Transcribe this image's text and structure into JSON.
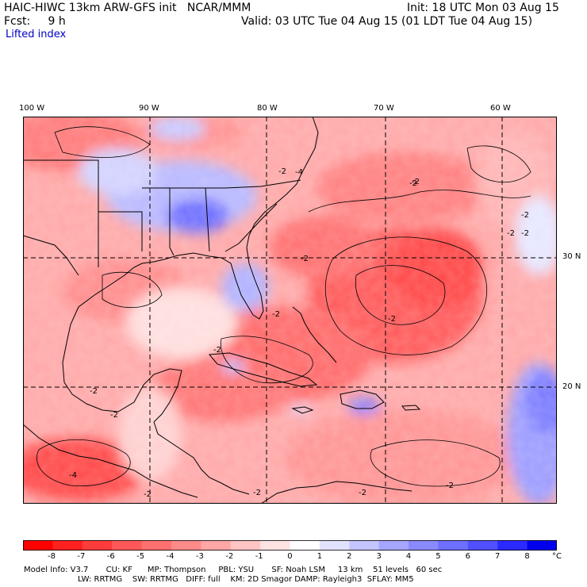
{
  "header": {
    "line1_left": "HAIC-HIWC 13km ARW-GFS init   NCAR/MMM",
    "line1_right": "Init: 18 UTC Mon 03 Aug 15",
    "line2_left": "Fcst:     9 h",
    "line2_right": "Valid: 03 UTC Tue 04 Aug 15 (01 LDT Tue 04 Aug 15)",
    "field_name": "Lifted index"
  },
  "map": {
    "lon_labels": [
      "100 W",
      "90 W",
      "80 W",
      "70 W",
      "60 W"
    ],
    "lat_labels": [
      "30 N",
      "20 N"
    ],
    "contour_labels": [
      "-2",
      "-4",
      "-2",
      "-2",
      "-2",
      "-2",
      "-2",
      "-2",
      "-2",
      "-2",
      "-2",
      "-4",
      "-2",
      "-2",
      "-2",
      "-2",
      "-2",
      "-2"
    ]
  },
  "colorbar": {
    "ticks": [
      "-8",
      "-7",
      "-6",
      "-5",
      "-4",
      "-3",
      "-2",
      "-1",
      "0",
      "1",
      "2",
      "3",
      "4",
      "5",
      "6",
      "7",
      "8"
    ],
    "unit": "°C",
    "colors": [
      "#ff0000",
      "#ff2020",
      "#ff3c3c",
      "#ff5858",
      "#ff7070",
      "#ff8a8a",
      "#ffa6a6",
      "#ffc4c4",
      "#ffe2e2",
      "#ffffff",
      "#e2e2ff",
      "#c4c4ff",
      "#a6a6ff",
      "#8a8aff",
      "#6e6eff",
      "#5050ff",
      "#2a2aff",
      "#0000ee"
    ]
  },
  "model_info": {
    "line1": "Model Info: V3.7       CU: KF      MP: Thompson     PBL: YSU       SF: Noah LSM     13 km    51 levels   60 sec",
    "line2": "LW: RRTMG    SW: RRTMG   DIFF: full    KM: 2D Smagor DAMP: Rayleigh3  SFLAY: MM5"
  }
}
